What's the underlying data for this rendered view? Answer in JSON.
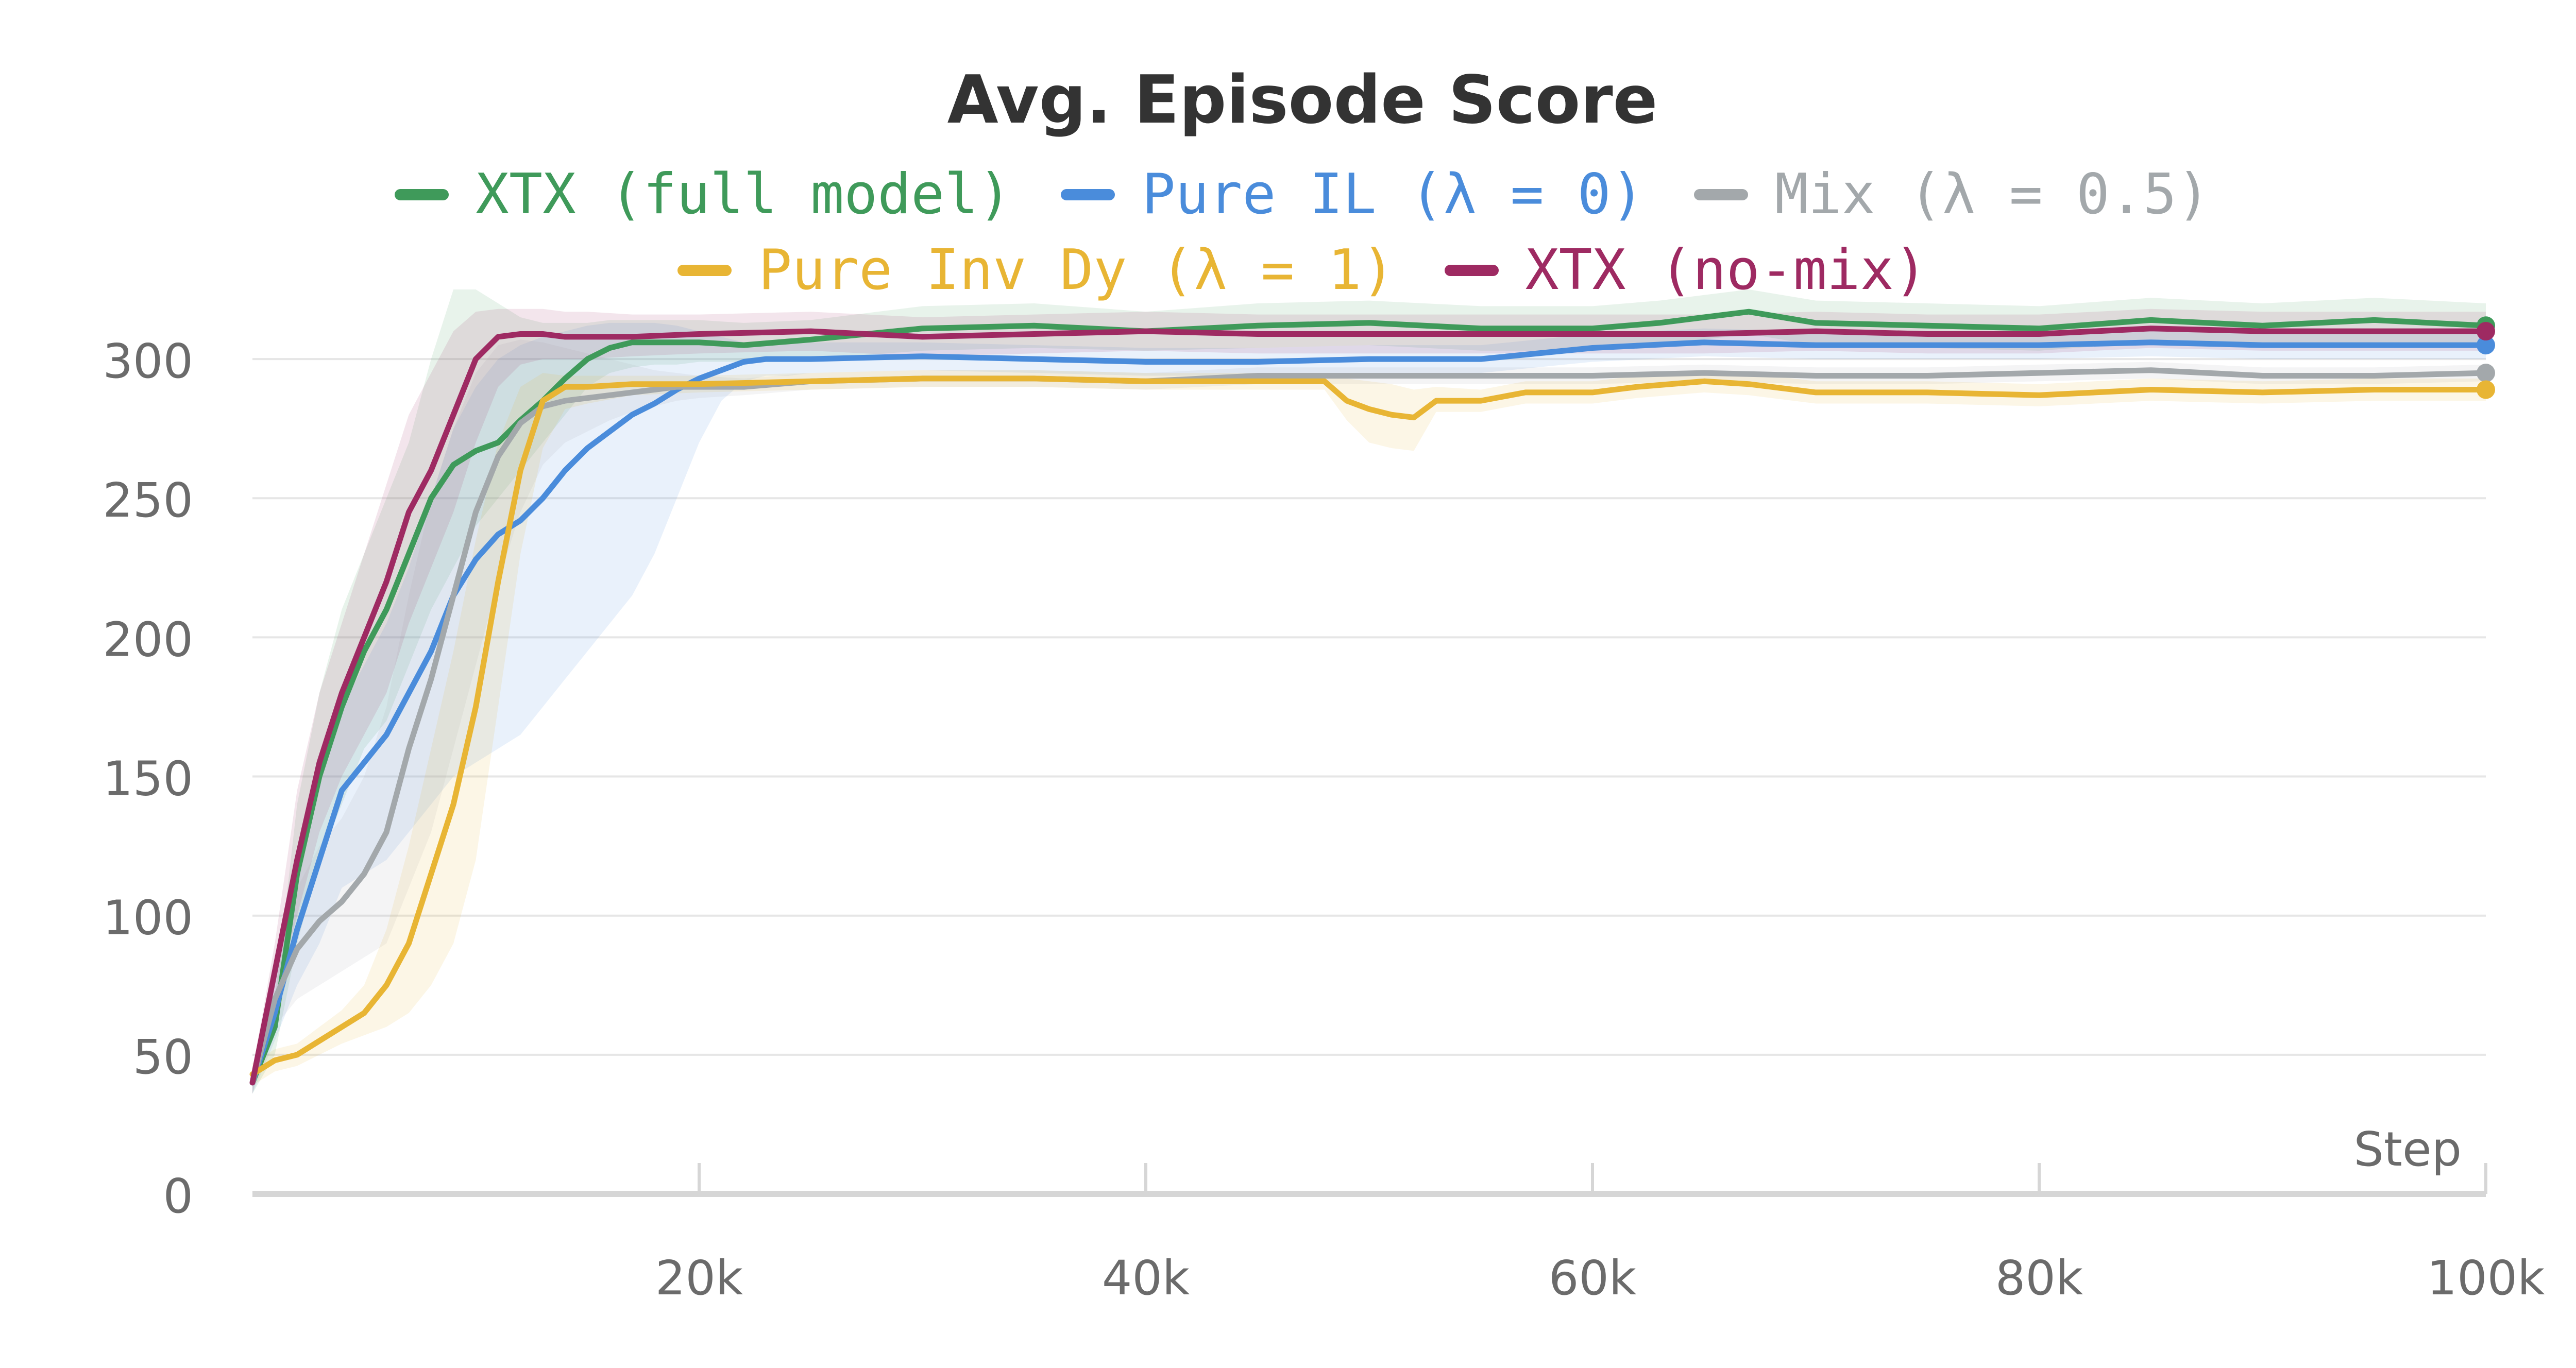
{
  "chart_data": {
    "type": "line",
    "title": "Avg. Episode Score",
    "xlabel": "Step",
    "ylabel": "",
    "xlim": [
      0,
      100000
    ],
    "ylim": [
      0,
      330
    ],
    "x_ticks": [
      20000,
      40000,
      60000,
      80000,
      100000
    ],
    "x_tick_labels": [
      "20k",
      "40k",
      "60k",
      "80k",
      "100k"
    ],
    "y_ticks": [
      0,
      50,
      100,
      150,
      200,
      250,
      300
    ],
    "y_tick_labels": [
      "0",
      "50",
      "100",
      "150",
      "200",
      "250",
      "300"
    ],
    "grid": true,
    "legend_position": "top-center",
    "series": [
      {
        "name": "XTX (full model)",
        "color": "#3f9a5a",
        "x": [
          0,
          1000,
          2000,
          3000,
          4000,
          5000,
          6000,
          7000,
          8000,
          9000,
          10000,
          11000,
          12000,
          13000,
          14000,
          15000,
          16000,
          17000,
          18000,
          19000,
          20000,
          22000,
          25000,
          30000,
          35000,
          40000,
          45000,
          50000,
          55000,
          60000,
          63000,
          65000,
          67000,
          70000,
          75000,
          80000,
          85000,
          90000,
          95000,
          100000
        ],
        "y": [
          40,
          60,
          115,
          150,
          175,
          195,
          210,
          230,
          250,
          262,
          267,
          270,
          278,
          285,
          293,
          300,
          304,
          306,
          306,
          306,
          306,
          305,
          307,
          311,
          312,
          310,
          312,
          313,
          311,
          311,
          313,
          315,
          317,
          313,
          312,
          311,
          314,
          312,
          314,
          312
        ],
        "band_low": [
          36,
          50,
          90,
          120,
          140,
          160,
          170,
          190,
          210,
          225,
          240,
          250,
          260,
          270,
          280,
          290,
          295,
          297,
          298,
          298,
          299,
          299,
          300,
          303,
          304,
          303,
          304,
          305,
          303,
          303,
          305,
          307,
          309,
          305,
          304,
          303,
          306,
          304,
          306,
          304
        ],
        "band_high": [
          44,
          70,
          140,
          180,
          210,
          230,
          250,
          270,
          300,
          325,
          325,
          320,
          315,
          313,
          313,
          313,
          314,
          314,
          314,
          314,
          314,
          313,
          314,
          319,
          320,
          317,
          320,
          321,
          319,
          319,
          321,
          323,
          325,
          321,
          320,
          319,
          322,
          320,
          322,
          320
        ]
      },
      {
        "name": "Pure IL (λ = 0)",
        "color": "#4a8cdb",
        "x": [
          0,
          1000,
          2000,
          3000,
          4000,
          5000,
          6000,
          7000,
          8000,
          9000,
          10000,
          11000,
          12000,
          13000,
          14000,
          15000,
          16000,
          17000,
          18000,
          19000,
          20000,
          21000,
          22000,
          23000,
          24000,
          25000,
          30000,
          35000,
          40000,
          45000,
          50000,
          53000,
          55000,
          60000,
          65000,
          70000,
          75000,
          80000,
          85000,
          90000,
          95000,
          100000
        ],
        "y": [
          40,
          65,
          95,
          120,
          145,
          155,
          165,
          180,
          195,
          215,
          228,
          237,
          242,
          250,
          260,
          268,
          274,
          280,
          284,
          289,
          293,
          296,
          299,
          300,
          300,
          300,
          301,
          300,
          299,
          299,
          300,
          300,
          300,
          304,
          306,
          305,
          305,
          305,
          306,
          305,
          305,
          305
        ],
        "band_low": [
          36,
          55,
          75,
          90,
          110,
          115,
          120,
          130,
          140,
          150,
          155,
          160,
          165,
          175,
          185,
          195,
          205,
          215,
          230,
          250,
          270,
          285,
          292,
          294,
          294,
          295,
          296,
          295,
          294,
          294,
          295,
          295,
          295,
          299,
          301,
          300,
          300,
          300,
          301,
          300,
          300,
          300
        ],
        "band_high": [
          44,
          75,
          115,
          150,
          175,
          190,
          205,
          225,
          250,
          275,
          290,
          300,
          305,
          308,
          310,
          312,
          313,
          313,
          313,
          312,
          310,
          308,
          306,
          306,
          306,
          306,
          306,
          305,
          304,
          304,
          305,
          305,
          305,
          309,
          311,
          310,
          310,
          310,
          311,
          310,
          310,
          310
        ]
      },
      {
        "name": "Mix (λ = 0.5)",
        "color": "#a3a8ab",
        "x": [
          0,
          1000,
          2000,
          3000,
          4000,
          5000,
          6000,
          7000,
          8000,
          9000,
          10000,
          11000,
          12000,
          13000,
          14000,
          15000,
          16000,
          17000,
          18000,
          19000,
          20000,
          22000,
          25000,
          30000,
          35000,
          40000,
          45000,
          50000,
          55000,
          60000,
          65000,
          70000,
          75000,
          80000,
          85000,
          90000,
          95000,
          100000
        ],
        "y": [
          40,
          70,
          88,
          98,
          105,
          115,
          130,
          160,
          185,
          215,
          245,
          265,
          277,
          283,
          285,
          286,
          287,
          288,
          289,
          290,
          290,
          290,
          292,
          293,
          293,
          292,
          294,
          294,
          294,
          294,
          295,
          294,
          294,
          295,
          296,
          294,
          294,
          295
        ],
        "band_low": [
          36,
          60,
          70,
          75,
          80,
          85,
          90,
          110,
          130,
          160,
          190,
          220,
          245,
          262,
          270,
          274,
          278,
          281,
          283,
          285,
          286,
          287,
          289,
          290,
          290,
          289,
          291,
          291,
          291,
          291,
          292,
          291,
          291,
          292,
          293,
          291,
          291,
          292
        ],
        "band_high": [
          44,
          80,
          110,
          125,
          135,
          150,
          175,
          215,
          250,
          275,
          295,
          305,
          307,
          306,
          304,
          302,
          300,
          298,
          296,
          295,
          294,
          293,
          295,
          296,
          296,
          295,
          297,
          297,
          297,
          297,
          298,
          297,
          297,
          298,
          299,
          297,
          297,
          298
        ]
      },
      {
        "name": "Pure Inv Dy (λ = 1)",
        "color": "#e8b534",
        "x": [
          0,
          1000,
          2000,
          3000,
          4000,
          5000,
          6000,
          7000,
          8000,
          9000,
          10000,
          11000,
          12000,
          13000,
          14000,
          15000,
          17000,
          20000,
          25000,
          30000,
          35000,
          40000,
          45000,
          48000,
          49000,
          50000,
          51000,
          52000,
          53000,
          55000,
          57000,
          60000,
          62000,
          65000,
          67000,
          70000,
          75000,
          80000,
          85000,
          90000,
          95000,
          100000
        ],
        "y": [
          43,
          48,
          50,
          55,
          60,
          65,
          75,
          90,
          115,
          140,
          175,
          220,
          260,
          285,
          290,
          290,
          291,
          291,
          292,
          293,
          293,
          292,
          292,
          292,
          285,
          282,
          280,
          279,
          285,
          285,
          288,
          288,
          290,
          292,
          291,
          288,
          288,
          287,
          289,
          288,
          289,
          289
        ],
        "band_low": [
          39,
          44,
          46,
          50,
          54,
          57,
          60,
          65,
          75,
          90,
          120,
          175,
          230,
          268,
          282,
          284,
          287,
          288,
          289,
          290,
          290,
          289,
          289,
          289,
          278,
          270,
          268,
          267,
          281,
          281,
          284,
          284,
          286,
          288,
          287,
          284,
          284,
          283,
          285,
          284,
          285,
          285
        ],
        "band_high": [
          47,
          52,
          54,
          60,
          66,
          75,
          95,
          125,
          160,
          195,
          235,
          270,
          290,
          295,
          294,
          294,
          294,
          294,
          295,
          296,
          296,
          295,
          295,
          295,
          293,
          292,
          291,
          289,
          290,
          289,
          292,
          292,
          294,
          296,
          295,
          292,
          292,
          291,
          293,
          292,
          293,
          293
        ]
      },
      {
        "name": "XTX (no-mix)",
        "color": "#9e2a62",
        "x": [
          0,
          1000,
          2000,
          3000,
          4000,
          5000,
          6000,
          7000,
          8000,
          9000,
          10000,
          11000,
          12000,
          13000,
          14000,
          15000,
          17000,
          20000,
          25000,
          30000,
          35000,
          40000,
          45000,
          50000,
          55000,
          60000,
          65000,
          70000,
          75000,
          80000,
          85000,
          90000,
          95000,
          100000
        ],
        "y": [
          40,
          80,
          120,
          155,
          180,
          200,
          220,
          245,
          260,
          280,
          300,
          308,
          309,
          309,
          308,
          308,
          308,
          309,
          310,
          308,
          309,
          310,
          309,
          309,
          309,
          309,
          309,
          310,
          309,
          309,
          311,
          310,
          310,
          310
        ],
        "band_low": [
          36,
          70,
          100,
          130,
          150,
          165,
          180,
          205,
          225,
          245,
          270,
          290,
          298,
          300,
          300,
          300,
          301,
          302,
          303,
          301,
          302,
          303,
          302,
          302,
          302,
          302,
          302,
          303,
          302,
          302,
          304,
          303,
          303,
          303
        ],
        "band_high": [
          44,
          90,
          145,
          180,
          205,
          230,
          255,
          280,
          295,
          310,
          317,
          318,
          318,
          318,
          317,
          317,
          316,
          316,
          317,
          315,
          316,
          317,
          316,
          316,
          316,
          316,
          316,
          317,
          316,
          316,
          318,
          317,
          317,
          317
        ]
      }
    ]
  }
}
